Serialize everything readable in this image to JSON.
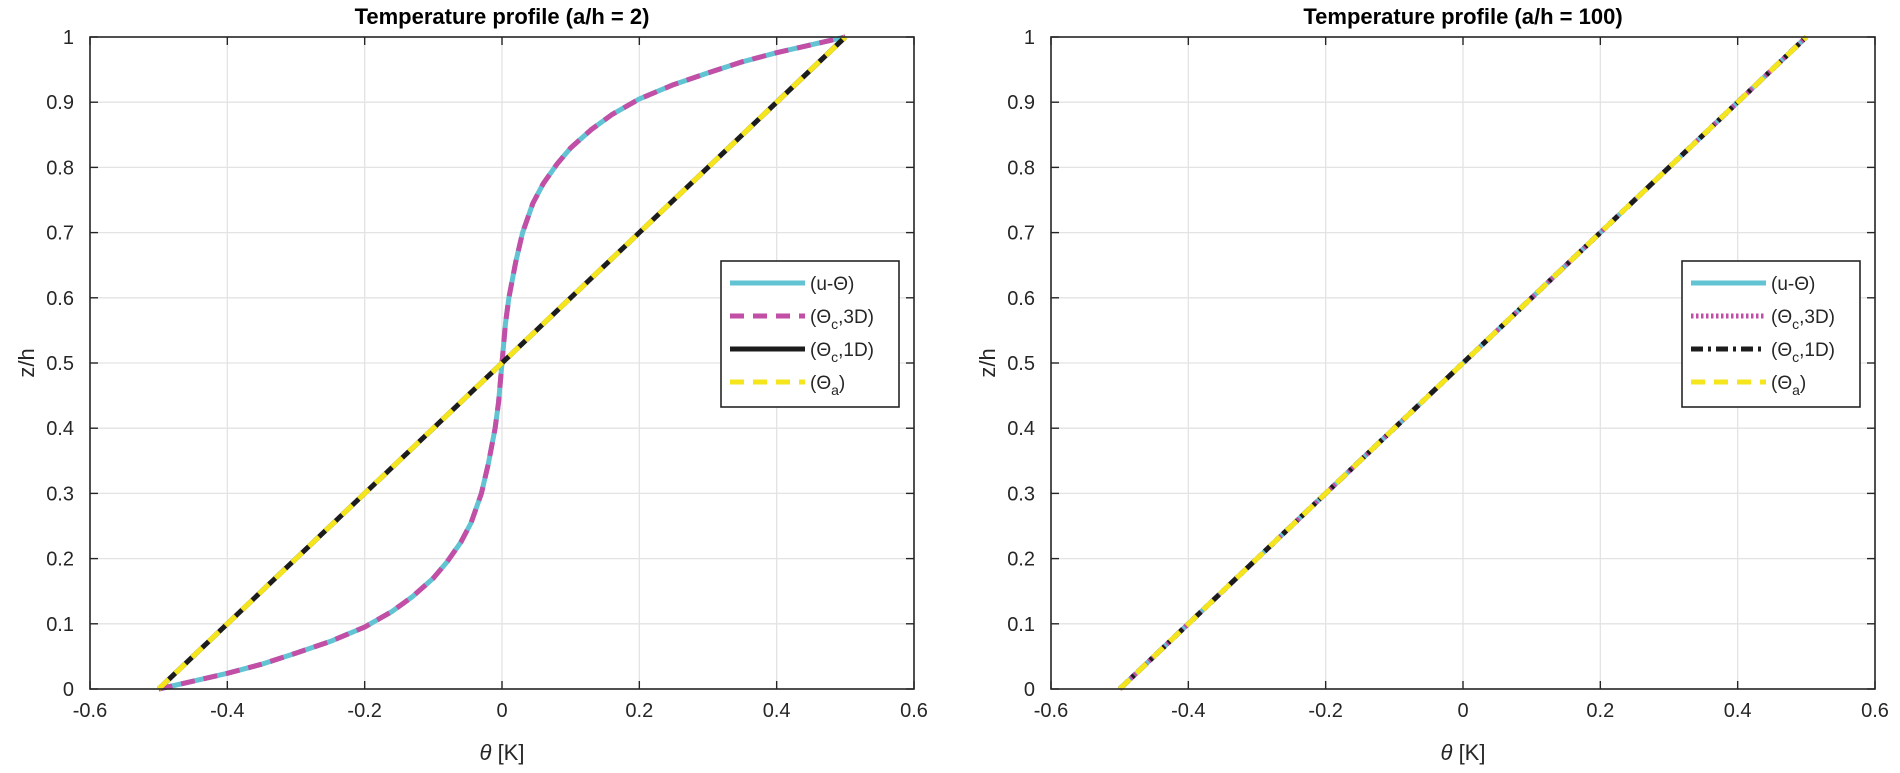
{
  "chart_data": [
    {
      "type": "line",
      "title": "Temperature profile (a/h = 2)",
      "xlabel_symbol": "θ",
      "xlabel_unit": " [K]",
      "ylabel": "z/h",
      "xlim": [
        -0.6,
        0.6
      ],
      "ylim": [
        0,
        1
      ],
      "xticks": [
        -0.6,
        -0.4,
        -0.2,
        0,
        0.2,
        0.4,
        0.6
      ],
      "xtick_labels": [
        "-0.6",
        "-0.4",
        "-0.2",
        "0",
        "0.2",
        "0.4",
        "0.6"
      ],
      "yticks": [
        0,
        0.1,
        0.2,
        0.3,
        0.4,
        0.5,
        0.6,
        0.7,
        0.8,
        0.9,
        1
      ],
      "ytick_labels": [
        "0",
        "0.1",
        "0.2",
        "0.3",
        "0.4",
        "0.5",
        "0.6",
        "0.7",
        "0.8",
        "0.9",
        "1"
      ],
      "grid": true,
      "legend_position": "right",
      "series": [
        {
          "name": "(u-Θ)",
          "legend_main": "(u-Θ)",
          "legend_sub": "",
          "legend_tail": "",
          "color": "#62c3d2",
          "style": "solid",
          "x": [
            -0.5,
            -0.45,
            -0.4,
            -0.35,
            -0.3,
            -0.25,
            -0.2,
            -0.16,
            -0.13,
            -0.1,
            -0.08,
            -0.06,
            -0.045,
            -0.03,
            -0.02,
            -0.01,
            -0.005,
            0,
            0.005,
            0.01,
            0.02,
            0.03,
            0.045,
            0.06,
            0.08,
            0.1,
            0.13,
            0.16,
            0.2,
            0.25,
            0.3,
            0.35,
            0.4,
            0.45,
            0.5
          ],
          "y": [
            0,
            0.012,
            0.024,
            0.038,
            0.055,
            0.073,
            0.095,
            0.119,
            0.142,
            0.17,
            0.195,
            0.225,
            0.255,
            0.3,
            0.345,
            0.4,
            0.44,
            0.5,
            0.56,
            0.6,
            0.655,
            0.7,
            0.745,
            0.775,
            0.805,
            0.83,
            0.858,
            0.881,
            0.905,
            0.927,
            0.945,
            0.962,
            0.976,
            0.988,
            1
          ]
        },
        {
          "name": "(Θc,3D)",
          "legend_main": "(Θ",
          "legend_sub": "c",
          "legend_tail": ",3D)",
          "color": "#c24ea6",
          "style": "dashed",
          "x": [
            -0.5,
            -0.45,
            -0.4,
            -0.35,
            -0.3,
            -0.25,
            -0.2,
            -0.16,
            -0.13,
            -0.1,
            -0.08,
            -0.06,
            -0.045,
            -0.03,
            -0.02,
            -0.01,
            -0.005,
            0,
            0.005,
            0.01,
            0.02,
            0.03,
            0.045,
            0.06,
            0.08,
            0.1,
            0.13,
            0.16,
            0.2,
            0.25,
            0.3,
            0.35,
            0.4,
            0.45,
            0.5
          ],
          "y": [
            0,
            0.012,
            0.024,
            0.038,
            0.055,
            0.073,
            0.095,
            0.119,
            0.142,
            0.17,
            0.195,
            0.225,
            0.255,
            0.3,
            0.345,
            0.4,
            0.44,
            0.5,
            0.56,
            0.6,
            0.655,
            0.7,
            0.745,
            0.775,
            0.805,
            0.83,
            0.858,
            0.881,
            0.905,
            0.927,
            0.945,
            0.962,
            0.976,
            0.988,
            1
          ]
        },
        {
          "name": "(Θc,1D)",
          "legend_main": "(Θ",
          "legend_sub": "c",
          "legend_tail": ",1D)",
          "color": "#1c1c1c",
          "style": "solid",
          "x": [
            -0.5,
            0.5
          ],
          "y": [
            0,
            1
          ]
        },
        {
          "name": "(Θa)",
          "legend_main": "(Θ",
          "legend_sub": "a",
          "legend_tail": ")",
          "color": "#f5e51c",
          "style": "dashed",
          "x": [
            -0.5,
            0.5
          ],
          "y": [
            0,
            1
          ]
        }
      ]
    },
    {
      "type": "line",
      "title": "Temperature profile (a/h = 100)",
      "xlabel_symbol": "θ",
      "xlabel_unit": " [K]",
      "ylabel": "z/h",
      "xlim": [
        -0.6,
        0.6
      ],
      "ylim": [
        0,
        1
      ],
      "xticks": [
        -0.6,
        -0.4,
        -0.2,
        0,
        0.2,
        0.4,
        0.6
      ],
      "xtick_labels": [
        "-0.6",
        "-0.4",
        "-0.2",
        "0",
        "0.2",
        "0.4",
        "0.6"
      ],
      "yticks": [
        0,
        0.1,
        0.2,
        0.3,
        0.4,
        0.5,
        0.6,
        0.7,
        0.8,
        0.9,
        1
      ],
      "ytick_labels": [
        "0",
        "0.1",
        "0.2",
        "0.3",
        "0.4",
        "0.5",
        "0.6",
        "0.7",
        "0.8",
        "0.9",
        "1"
      ],
      "grid": true,
      "legend_position": "right",
      "series": [
        {
          "name": "(u-Θ)",
          "legend_main": "(u-Θ)",
          "legend_sub": "",
          "legend_tail": "",
          "color": "#62c3d2",
          "style": "solid",
          "x": [
            -0.5,
            0.5
          ],
          "y": [
            0,
            1
          ]
        },
        {
          "name": "(Θc,3D)",
          "legend_main": "(Θ",
          "legend_sub": "c",
          "legend_tail": ",3D)",
          "color": "#c24ea6",
          "style": "dotted",
          "x": [
            -0.5,
            0.5
          ],
          "y": [
            0,
            1
          ]
        },
        {
          "name": "(Θc,1D)",
          "legend_main": "(Θ",
          "legend_sub": "c",
          "legend_tail": ",1D)",
          "color": "#1c1c1c",
          "style": "dashdot",
          "x": [
            -0.5,
            0.5
          ],
          "y": [
            0,
            1
          ]
        },
        {
          "name": "(Θa)",
          "legend_main": "(Θ",
          "legend_sub": "a",
          "legend_tail": ")",
          "color": "#f5e51c",
          "style": "dashed",
          "x": [
            -0.5,
            0.5
          ],
          "y": [
            0,
            1
          ]
        }
      ]
    }
  ]
}
